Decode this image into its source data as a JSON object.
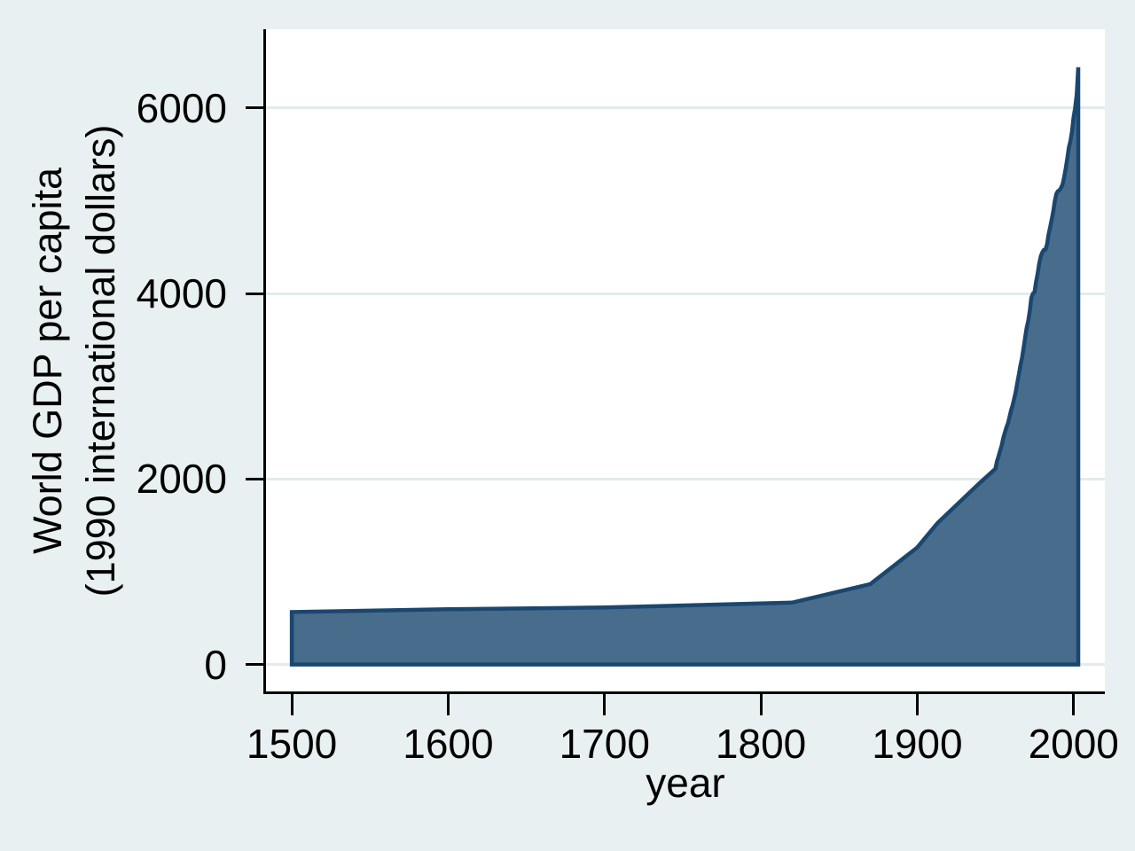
{
  "colors": {
    "figure_background": "#E9F0F2",
    "plot_background": "#FFFFFF",
    "gridline": "#E2EBEE",
    "axis": "#000000",
    "area_fill": "#486C8C",
    "area_outline": "#1A476F"
  },
  "chart_data": {
    "type": "area",
    "title": "",
    "xlabel": "year",
    "ylabel_lines": [
      "World GDP per capita",
      "(1990 international dollars)"
    ],
    "x_ticks": [
      1500,
      1600,
      1700,
      1800,
      1900,
      2000
    ],
    "y_ticks": [
      0,
      2000,
      4000,
      6000
    ],
    "xlim": [
      1483.5,
      2020
    ],
    "ylim": [
      -300,
      6850
    ],
    "grid": true,
    "legend": "none",
    "baseline": 0,
    "series": [
      {
        "name": "World GDP per capita (1990 international dollars)",
        "fill_color": "#486C8C",
        "line_color": "#1A476F",
        "points": [
          [
            1500,
            566
          ],
          [
            1600,
            596
          ],
          [
            1700,
            615
          ],
          [
            1820,
            667
          ],
          [
            1870,
            867
          ],
          [
            1900,
            1262
          ],
          [
            1913,
            1526
          ],
          [
            1940,
            1958
          ],
          [
            1950,
            2111
          ],
          [
            1951,
            2190
          ],
          [
            1952,
            2245
          ],
          [
            1953,
            2305
          ],
          [
            1954,
            2360
          ],
          [
            1955,
            2440
          ],
          [
            1956,
            2500
          ],
          [
            1957,
            2555
          ],
          [
            1958,
            2600
          ],
          [
            1959,
            2665
          ],
          [
            1960,
            2740
          ],
          [
            1961,
            2795
          ],
          [
            1962,
            2865
          ],
          [
            1963,
            2940
          ],
          [
            1964,
            3040
          ],
          [
            1965,
            3125
          ],
          [
            1966,
            3225
          ],
          [
            1967,
            3300
          ],
          [
            1968,
            3410
          ],
          [
            1969,
            3525
          ],
          [
            1970,
            3630
          ],
          [
            1971,
            3705
          ],
          [
            1972,
            3815
          ],
          [
            1973,
            3955
          ],
          [
            1974,
            4000
          ],
          [
            1975,
            4015
          ],
          [
            1976,
            4125
          ],
          [
            1977,
            4215
          ],
          [
            1978,
            4320
          ],
          [
            1979,
            4400
          ],
          [
            1980,
            4445
          ],
          [
            1981,
            4470
          ],
          [
            1982,
            4475
          ],
          [
            1983,
            4530
          ],
          [
            1984,
            4635
          ],
          [
            1985,
            4715
          ],
          [
            1986,
            4795
          ],
          [
            1987,
            4885
          ],
          [
            1988,
            5000
          ],
          [
            1989,
            5075
          ],
          [
            1990,
            5105
          ],
          [
            1991,
            5115
          ],
          [
            1992,
            5140
          ],
          [
            1993,
            5180
          ],
          [
            1994,
            5260
          ],
          [
            1995,
            5350
          ],
          [
            1996,
            5460
          ],
          [
            1997,
            5575
          ],
          [
            1998,
            5645
          ],
          [
            1999,
            5750
          ],
          [
            2000,
            5900
          ],
          [
            2001,
            6000
          ],
          [
            2002,
            6150
          ],
          [
            2003,
            6440
          ]
        ]
      }
    ]
  }
}
